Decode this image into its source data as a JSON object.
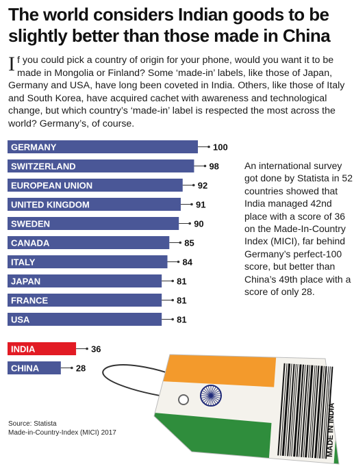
{
  "headline": "The world considers Indian goods to be slightly better than those made in China",
  "intro": {
    "dropcap": "I",
    "text": "f you could pick a country of origin for your phone, would you want it to be made in Mongolia or Finland? Some ‘made-in’ labels, like those of Japan, Germany and USA, have long been coveted in India. Others, like those of Italy and South Korea, have acquired cachet with awareness and technological change, but which country’s ‘made-in’ label is respected the most across the world? Germany’s, of course."
  },
  "sidenote": "An international survey got done by Statista in 52 countries showed that India managed 42nd place with a score of 36 on the Made-In-Country Index (MICI), far behind Germany’s perfect-100 score, but better than China’s 49th place with a score of only 28.",
  "source": {
    "line1": "Source: Statista",
    "line2": "Made-in-Country-Index (MICI) 2017"
  },
  "tag_text": "MADE IN INDIA",
  "colors": {
    "bar": "#4a5797",
    "highlight": "#e21b24",
    "saffron": "#f39a2c",
    "green": "#2f8d3c",
    "chakra": "#1f2a78"
  },
  "chart_data": {
    "type": "bar",
    "orientation": "horizontal",
    "xlim": [
      0,
      100
    ],
    "categories": [
      "GERMANY",
      "SWITZERLAND",
      "EUROPEAN UNION",
      "UNITED KINGDOM",
      "SWEDEN",
      "CANADA",
      "ITALY",
      "JAPAN",
      "FRANCE",
      "USA",
      "INDIA",
      "CHINA"
    ],
    "values": [
      100,
      98,
      92,
      91,
      90,
      85,
      84,
      81,
      81,
      81,
      36,
      28
    ],
    "highlighted": [
      "INDIA"
    ]
  }
}
